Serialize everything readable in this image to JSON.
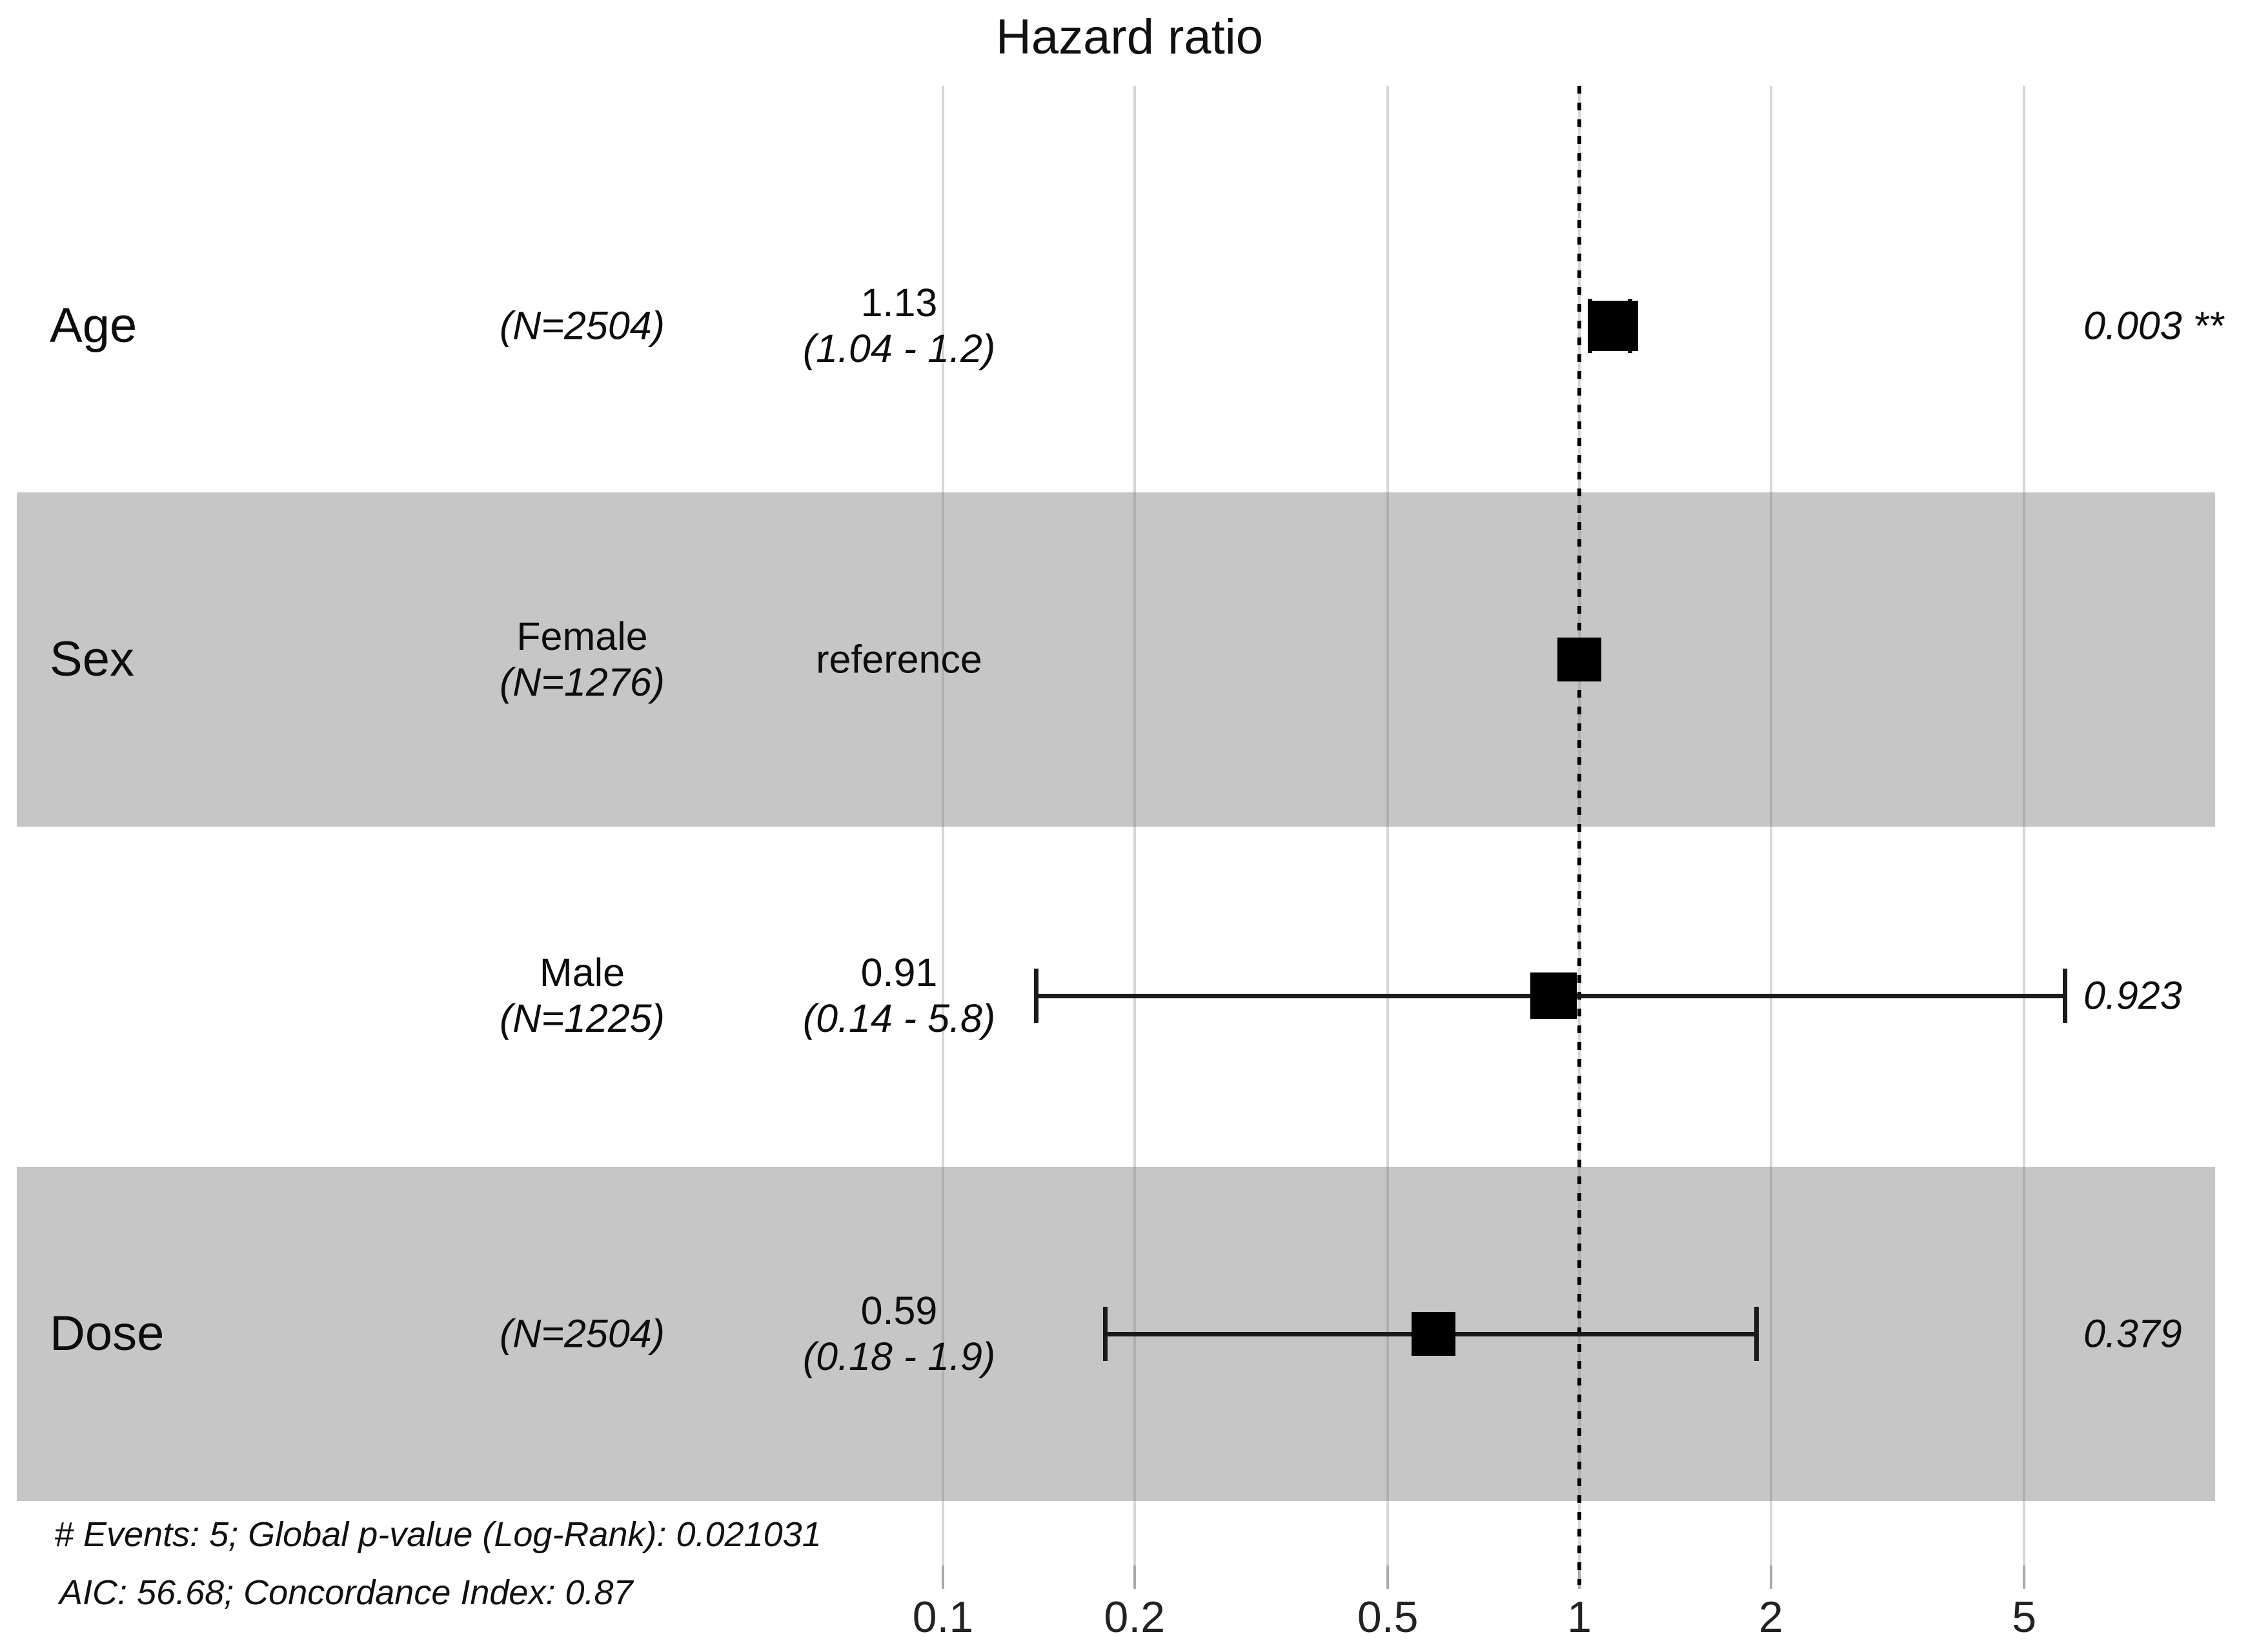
{
  "title": "Hazard ratio",
  "chart_data": {
    "type": "forest",
    "title": "Hazard ratio",
    "x_axis": {
      "scale": "log10",
      "ticks": [
        0.1,
        0.2,
        0.5,
        1,
        2,
        5
      ],
      "reference_line": 1,
      "grid": true
    },
    "rows": [
      {
        "variable": "Age",
        "level": "",
        "n_label": "(N=2504)",
        "estimate": 1.13,
        "ci_low": 1.04,
        "ci_high": 1.2,
        "estimate_label": "1.13",
        "ci_label": "(1.04 - 1.2)",
        "p_label": "0.003 **",
        "reference": false,
        "shaded": false,
        "marker_size": 78
      },
      {
        "variable": "Sex",
        "level": "Female",
        "n_label": "(N=1276)",
        "estimate": 1,
        "ci_low": null,
        "ci_high": null,
        "estimate_label": "reference",
        "ci_label": "",
        "p_label": "",
        "reference": true,
        "shaded": true,
        "marker_size": 68
      },
      {
        "variable": "",
        "level": "Male",
        "n_label": "(N=1225)",
        "estimate": 0.91,
        "ci_low": 0.14,
        "ci_high": 5.8,
        "estimate_label": "0.91",
        "ci_label": "(0.14 - 5.8)",
        "p_label": "0.923",
        "reference": false,
        "shaded": false,
        "marker_size": 72
      },
      {
        "variable": "Dose",
        "level": "",
        "n_label": "(N=2504)",
        "estimate": 0.59,
        "ci_low": 0.18,
        "ci_high": 1.9,
        "estimate_label": "0.59",
        "ci_label": "(0.18 - 1.9)",
        "p_label": "0.379",
        "reference": false,
        "shaded": true,
        "marker_size": 68
      }
    ],
    "footnotes": [
      "# Events: 5; Global p-value (Log-Rank): 0.021031",
      "AIC: 56.68; Concordance Index: 0.87"
    ]
  },
  "colors": {
    "band": "rgba(118,118,118,0.42)",
    "gridline": "#d7d7d7",
    "tick": "#a9a9a9",
    "marker": "#000000",
    "reference_line": "#000000",
    "text": "#0d0d0d"
  }
}
